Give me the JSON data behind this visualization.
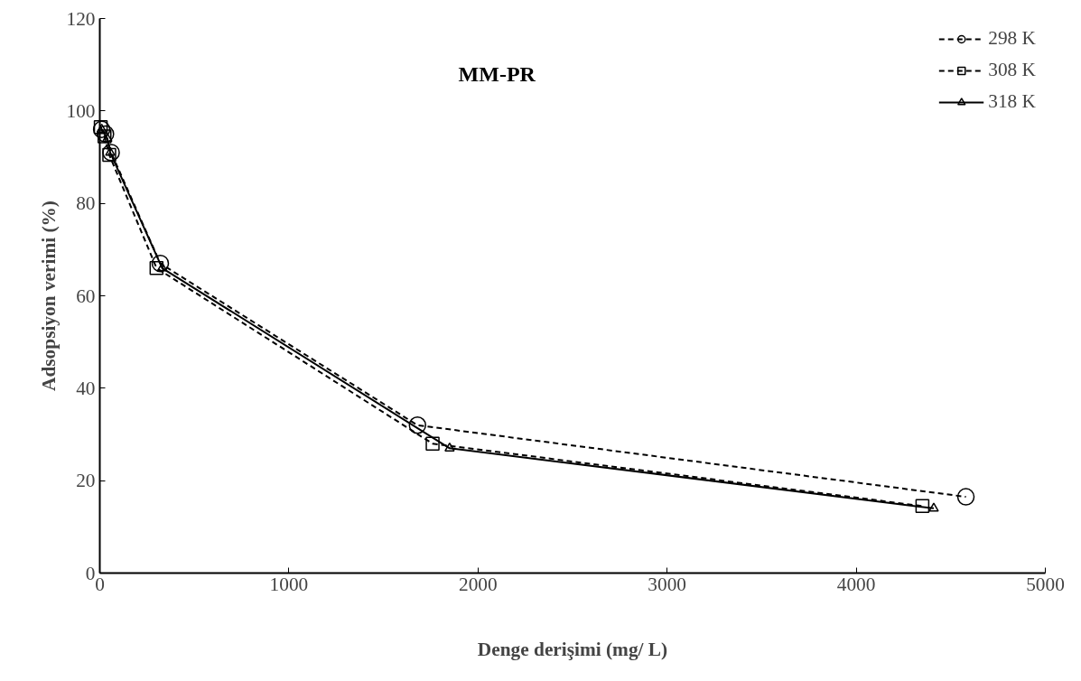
{
  "chart_data": {
    "type": "line",
    "title": "MM-PR",
    "xlabel": "Denge derişimi (mg/ L)",
    "ylabel": "Adsopsiyon verimi (%)",
    "xlim": [
      0,
      5000
    ],
    "xticks": [
      0,
      1000,
      2000,
      3000,
      4000,
      5000
    ],
    "ylim": [
      0,
      120
    ],
    "yticks": [
      0,
      20,
      40,
      60,
      80,
      100,
      120
    ],
    "grid": false,
    "legend": "top right",
    "series": [
      {
        "name": "298 K",
        "color": "#000000",
        "marker": "circle",
        "line_style": "dashed",
        "x": [
          10,
          30,
          60,
          320,
          1680,
          4580
        ],
        "values": [
          96,
          95,
          91,
          67,
          32,
          16.5
        ]
      },
      {
        "name": "308 K",
        "color": "#000000",
        "marker": "square",
        "line_style": "dashed",
        "x": [
          5,
          25,
          50,
          300,
          1760,
          4350
        ],
        "values": [
          96.5,
          94.5,
          90.5,
          66,
          28,
          14.5
        ]
      },
      {
        "name": "318 K",
        "color": "#000000",
        "marker": "triangle",
        "line_style": "solid",
        "x": [
          10,
          40,
          55,
          330,
          1850,
          4410
        ],
        "values": [
          96,
          94,
          91,
          66,
          27,
          14
        ]
      }
    ]
  }
}
